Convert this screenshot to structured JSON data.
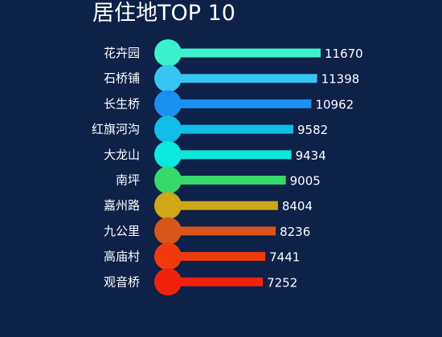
{
  "chart_data": {
    "type": "bar",
    "orientation": "horizontal",
    "title": "居住地TOP 10",
    "xlabel": "",
    "ylabel": "",
    "grid": false,
    "categories": [
      "花卉园",
      "石桥铺",
      "长生桥",
      "红旗河沟",
      "大龙山",
      "南坪",
      "嘉州路",
      "九公里",
      "高庙村",
      "观音桥"
    ],
    "values": [
      11670,
      11398,
      10962,
      9582,
      9434,
      9005,
      8404,
      8236,
      7441,
      7252
    ],
    "colors": [
      "#3cf2cc",
      "#37c5f2",
      "#1a90f0",
      "#12bde8",
      "#0de8de",
      "#36d96a",
      "#d1a718",
      "#d9561a",
      "#f03a0c",
      "#f0220c"
    ]
  }
}
